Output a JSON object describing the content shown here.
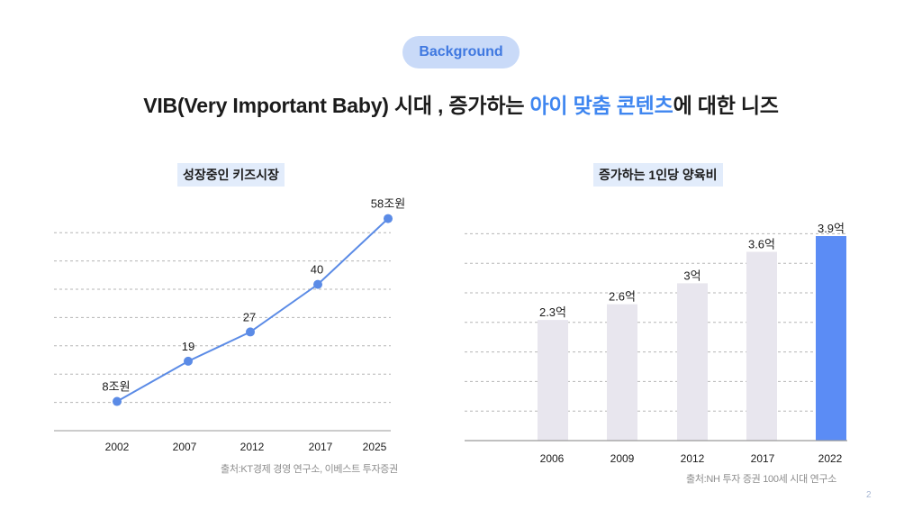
{
  "badge": "Background",
  "headline": {
    "part1": "VIB(Very Important Baby) 시대 , 증가하는 ",
    "highlight": "아이 맞춤 콘텐츠",
    "part2": "에 대한 니즈"
  },
  "colors": {
    "accent": "#3f86f0",
    "line": "#5b8be6",
    "bar_grey": "#e8e6ee",
    "bar_highlight": "#5b8cf5",
    "badge_bg": "#c9daf8"
  },
  "chart_data": [
    {
      "type": "line",
      "title": "성장중인 키즈시장",
      "categories": [
        "2002",
        "2007",
        "2012",
        "2017",
        "2025"
      ],
      "values": [
        8,
        19,
        27,
        40,
        58
      ],
      "data_labels": [
        "8조원",
        "19",
        "27",
        "40",
        "58조원"
      ],
      "unit": "조원",
      "ylim": [
        0,
        68
      ],
      "grid": true,
      "source": "출처:KT경제 경영 연구소, 이베스트 투자증권"
    },
    {
      "type": "bar",
      "title": "증가하는 1인당 양육비",
      "categories": [
        "2006",
        "2009",
        "2012",
        "2017",
        "2022"
      ],
      "values": [
        2.3,
        2.6,
        3,
        3.6,
        3.9
      ],
      "data_labels": [
        "2.3억",
        "2.6억",
        "3억",
        "3.6억",
        "3.9억"
      ],
      "unit": "억",
      "ylim": [
        0,
        5.75
      ],
      "grid": true,
      "highlight_index": 4,
      "source": "출처:NH 투자 증권 100세 시대 연구소"
    }
  ],
  "page_number": "2"
}
